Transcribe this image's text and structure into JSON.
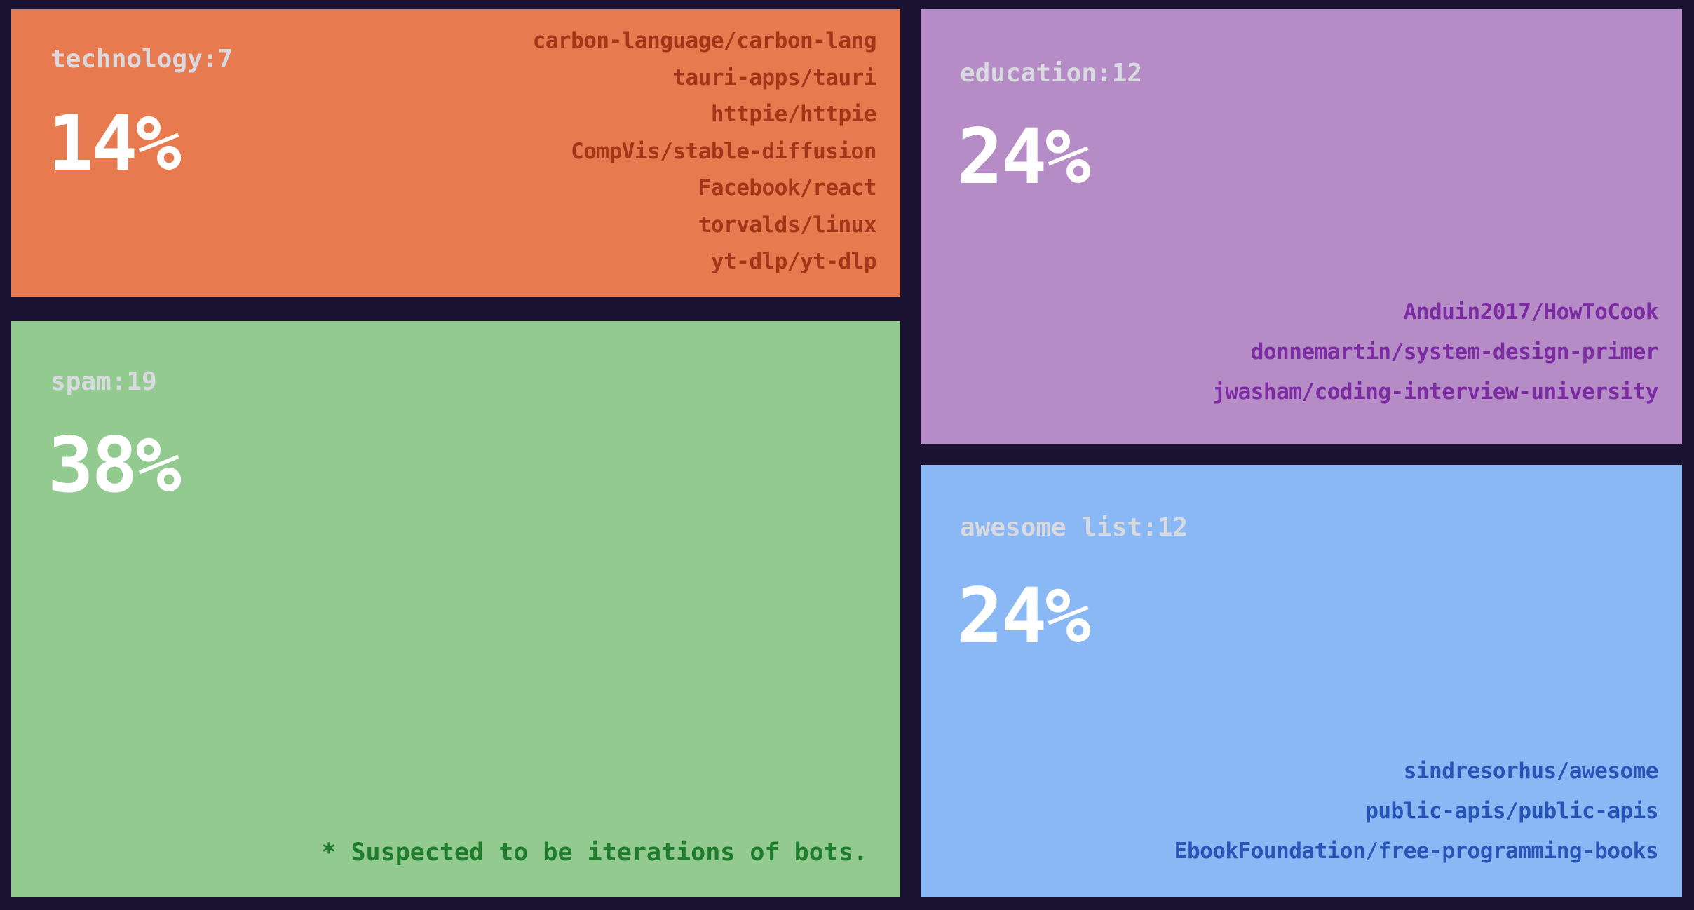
{
  "chart_data": {
    "type": "treemap",
    "title": "",
    "categories": [
      "technology",
      "spam",
      "education",
      "awesome list"
    ],
    "series": [
      {
        "name": "count",
        "values": [
          7,
          19,
          12,
          12
        ]
      },
      {
        "name": "percent",
        "values": [
          14,
          38,
          24,
          24
        ]
      }
    ],
    "annotations": [
      "* Suspected to be iterations of bots."
    ],
    "legend_position": "none",
    "background_color": "#1b1130"
  },
  "colors": {
    "background": "#1b1130",
    "label_text": "#d9dadf",
    "percent_text": "#ffffff"
  },
  "blocks": [
    {
      "id": "technology",
      "label": "technology:7",
      "percent": "14%",
      "count": 7,
      "share": 14,
      "color": "#e87a50",
      "text_color": "#a13619",
      "repos": [
        "carbon-language/carbon-lang",
        "tauri-apps/tauri",
        "httpie/httpie",
        "CompVis/stable-diffusion",
        "Facebook/react",
        "torvalds/linux",
        "yt-dlp/yt-dlp"
      ]
    },
    {
      "id": "spam",
      "label": "spam:19",
      "percent": "38%",
      "count": 19,
      "share": 38,
      "color": "#92ca90",
      "text_color": "#1e7c2c",
      "note": "* Suspected to be iterations of bots.",
      "repos": []
    },
    {
      "id": "education",
      "label": "education:12",
      "percent": "24%",
      "count": 12,
      "share": 24,
      "color": "#b58cc6",
      "text_color": "#7c2ba3",
      "repos": [
        "Anduin2017/HowToCook",
        "donnemartin/system-design-primer",
        "jwasham/coding-interview-university"
      ]
    },
    {
      "id": "awesome-list",
      "label": "awesome list:12",
      "percent": "24%",
      "count": 12,
      "share": 24,
      "color": "#89b8f4",
      "text_color": "#2a53b8",
      "repos": [
        "sindresorhus/awesome",
        "public-apis/public-apis",
        "EbookFoundation/free-programming-books"
      ]
    }
  ]
}
